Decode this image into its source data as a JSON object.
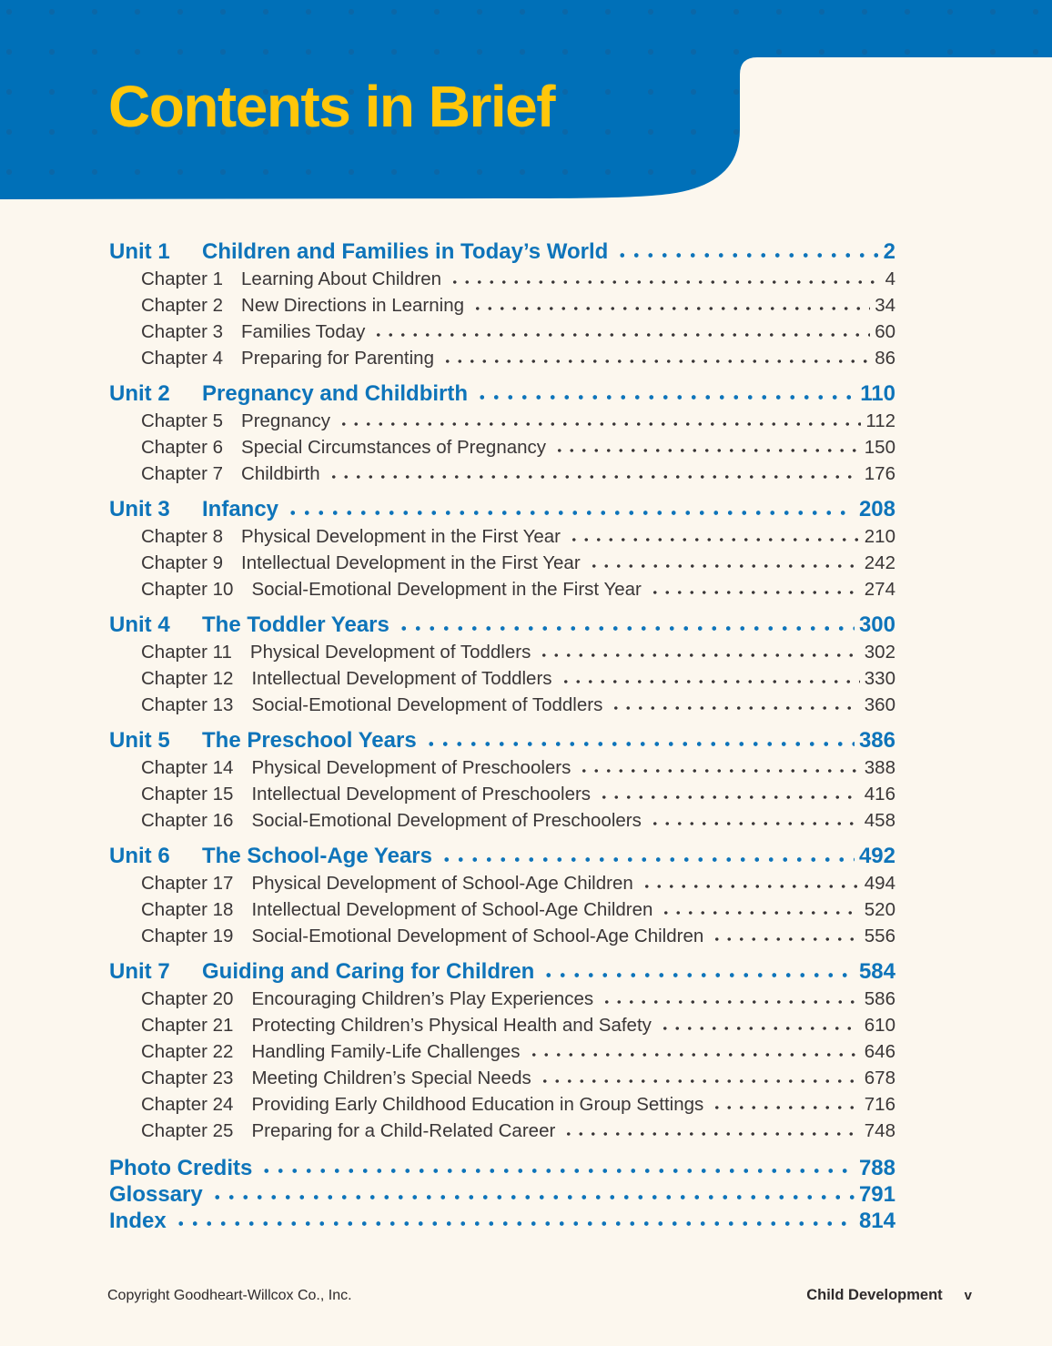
{
  "colors": {
    "banner-blue": "#0070b8",
    "banner-dot": "#0b67a7",
    "title-yellow": "#ffc60a",
    "unit-blue": "#0e74ba",
    "text-ink": "#3a3637",
    "footer-ink": "#2e2a2b",
    "page-cream": "#fcf7ee"
  },
  "header": {
    "title": "Contents in Brief"
  },
  "toc": {
    "units": [
      {
        "label": "Unit 1",
        "title": "Children and Families in Today’s World",
        "page": "2",
        "chapters": [
          {
            "label": "Chapter 1",
            "title": "Learning About Children",
            "page": "4"
          },
          {
            "label": "Chapter 2",
            "title": "New Directions in Learning",
            "page": "34"
          },
          {
            "label": "Chapter 3",
            "title": "Families Today",
            "page": "60"
          },
          {
            "label": "Chapter 4",
            "title": "Preparing for Parenting",
            "page": "86"
          }
        ]
      },
      {
        "label": "Unit 2",
        "title": "Pregnancy and Childbirth",
        "page": "110",
        "chapters": [
          {
            "label": "Chapter 5",
            "title": "Pregnancy",
            "page": "112"
          },
          {
            "label": "Chapter 6",
            "title": "Special Circumstances of Pregnancy",
            "page": "150"
          },
          {
            "label": "Chapter 7",
            "title": "Childbirth",
            "page": "176"
          }
        ]
      },
      {
        "label": "Unit 3",
        "title": "Infancy",
        "page": "208",
        "chapters": [
          {
            "label": "Chapter 8",
            "title": "Physical Development in the First Year",
            "page": "210"
          },
          {
            "label": "Chapter 9",
            "title": "Intellectual Development in the First Year",
            "page": "242"
          },
          {
            "label": "Chapter 10",
            "title": "Social-Emotional Development in the First Year",
            "page": "274"
          }
        ]
      },
      {
        "label": "Unit 4",
        "title": "The Toddler Years",
        "page": "300",
        "chapters": [
          {
            "label": "Chapter 11",
            "title": "Physical Development of Toddlers",
            "page": "302"
          },
          {
            "label": "Chapter 12",
            "title": "Intellectual Development of Toddlers",
            "page": "330"
          },
          {
            "label": "Chapter 13",
            "title": "Social-Emotional Development of Toddlers",
            "page": "360"
          }
        ]
      },
      {
        "label": "Unit 5",
        "title": "The Preschool Years",
        "page": "386",
        "chapters": [
          {
            "label": "Chapter 14",
            "title": "Physical Development of Preschoolers",
            "page": "388"
          },
          {
            "label": "Chapter 15",
            "title": "Intellectual Development of Preschoolers",
            "page": "416"
          },
          {
            "label": "Chapter 16",
            "title": "Social-Emotional Development of Preschoolers",
            "page": "458"
          }
        ]
      },
      {
        "label": "Unit 6",
        "title": "The School-Age Years",
        "page": "492",
        "chapters": [
          {
            "label": "Chapter 17",
            "title": "Physical Development of School-Age Children",
            "page": "494"
          },
          {
            "label": "Chapter 18",
            "title": "Intellectual Development of School-Age Children",
            "page": "520"
          },
          {
            "label": "Chapter 19",
            "title": "Social-Emotional Development of School-Age Children",
            "page": "556"
          }
        ]
      },
      {
        "label": "Unit 7",
        "title": "Guiding and Caring for Children",
        "page": "584",
        "chapters": [
          {
            "label": "Chapter 20",
            "title": "Encouraging Children’s Play Experiences",
            "page": "586"
          },
          {
            "label": "Chapter 21",
            "title": "Protecting Children’s Physical Health and Safety",
            "page": "610"
          },
          {
            "label": "Chapter 22",
            "title": "Handling Family-Life Challenges",
            "page": "646"
          },
          {
            "label": "Chapter 23",
            "title": "Meeting Children’s Special Needs",
            "page": "678"
          },
          {
            "label": "Chapter 24",
            "title": "Providing Early Childhood Education in Group Settings",
            "page": "716"
          },
          {
            "label": "Chapter 25",
            "title": "Preparing for a Child-Related Career",
            "page": "748"
          }
        ]
      }
    ],
    "back_matter": [
      {
        "title": "Photo Credits",
        "page": "788"
      },
      {
        "title": "Glossary",
        "page": "791"
      },
      {
        "title": "Index",
        "page": "814"
      }
    ]
  },
  "footer": {
    "copyright": "Copyright Goodheart-Willcox Co., Inc.",
    "book_title": "Child Development",
    "page_number": "v"
  }
}
